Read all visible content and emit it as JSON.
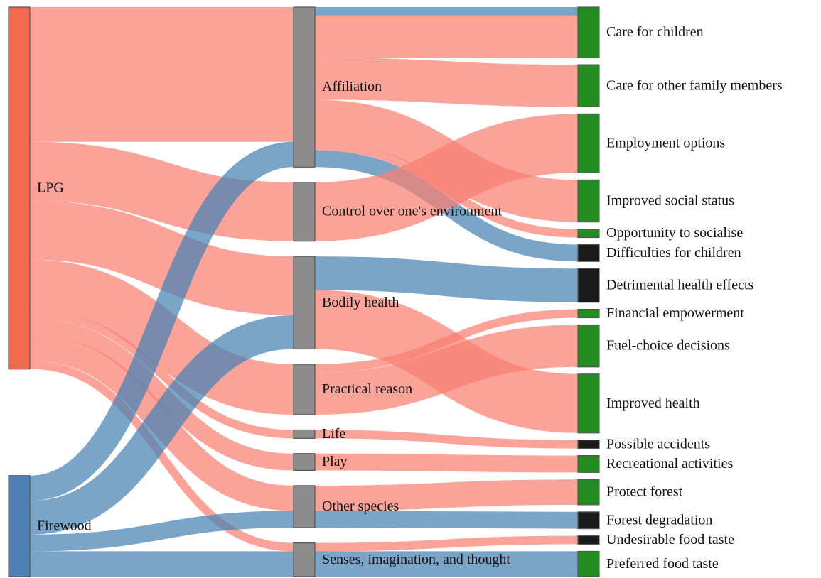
{
  "chart_data": {
    "type": "sankey",
    "nodes": [
      {
        "name": "LPG",
        "color": "#f4694f"
      },
      {
        "name": "Firewood",
        "color": "#4f81b5"
      },
      {
        "name": "Affiliation",
        "color": "#8c8c8c"
      },
      {
        "name": "Control over one's environment",
        "color": "#8c8c8c"
      },
      {
        "name": "Bodily health",
        "color": "#8c8c8c"
      },
      {
        "name": "Practical reason",
        "color": "#8c8c8c"
      },
      {
        "name": "Life",
        "color": "#8c8c8c"
      },
      {
        "name": "Play",
        "color": "#8c8c8c"
      },
      {
        "name": "Other species",
        "color": "#8c8c8c"
      },
      {
        "name": "Senses, imagination, and thought",
        "color": "#8c8c8c"
      },
      {
        "name": "Care for children",
        "color": "#228b22"
      },
      {
        "name": "Care for other family members",
        "color": "#228b22"
      },
      {
        "name": "Employment options",
        "color": "#228b22"
      },
      {
        "name": "Improved social status",
        "color": "#228b22"
      },
      {
        "name": "Opportunity to socialise",
        "color": "#228b22"
      },
      {
        "name": "Difficulties for children",
        "color": "#1a1a1a"
      },
      {
        "name": "Detrimental health effects",
        "color": "#1a1a1a"
      },
      {
        "name": "Financial empowerment",
        "color": "#228b22"
      },
      {
        "name": "Fuel-choice decisions",
        "color": "#228b22"
      },
      {
        "name": "Improved health",
        "color": "#228b22"
      },
      {
        "name": "Possible accidents",
        "color": "#1a1a1a"
      },
      {
        "name": "Recreational activities",
        "color": "#228b22"
      },
      {
        "name": "Protect forest",
        "color": "#228b22"
      },
      {
        "name": "Forest degradation",
        "color": "#1a1a1a"
      },
      {
        "name": "Undesirable food taste",
        "color": "#1a1a1a"
      },
      {
        "name": "Preferred food taste",
        "color": "#228b22"
      }
    ],
    "links": [
      {
        "source": 0,
        "target": 2,
        "value": 16,
        "color": "#fa8072"
      },
      {
        "source": 0,
        "target": 3,
        "value": 7,
        "color": "#fa8072"
      },
      {
        "source": 0,
        "target": 4,
        "value": 7,
        "color": "#fa8072"
      },
      {
        "source": 0,
        "target": 5,
        "value": 6,
        "color": "#fa8072"
      },
      {
        "source": 0,
        "target": 6,
        "value": 1,
        "color": "#fa8072"
      },
      {
        "source": 0,
        "target": 7,
        "value": 2,
        "color": "#fa8072"
      },
      {
        "source": 0,
        "target": 8,
        "value": 3,
        "color": "#fa8072"
      },
      {
        "source": 0,
        "target": 9,
        "value": 1,
        "color": "#fa8072"
      },
      {
        "source": 1,
        "target": 2,
        "value": 3,
        "color": "#4682b4"
      },
      {
        "source": 1,
        "target": 4,
        "value": 4,
        "color": "#4682b4"
      },
      {
        "source": 1,
        "target": 8,
        "value": 2,
        "color": "#4682b4"
      },
      {
        "source": 1,
        "target": 9,
        "value": 3,
        "color": "#4682b4"
      },
      {
        "source": 2,
        "target": 10,
        "value": 1,
        "color": "#4682b4"
      },
      {
        "source": 2,
        "target": 10,
        "value": 5,
        "color": "#fa8072"
      },
      {
        "source": 2,
        "target": 11,
        "value": 5,
        "color": "#fa8072"
      },
      {
        "source": 2,
        "target": 13,
        "value": 5,
        "color": "#fa8072"
      },
      {
        "source": 2,
        "target": 14,
        "value": 1,
        "color": "#fa8072"
      },
      {
        "source": 2,
        "target": 15,
        "value": 2,
        "color": "#4682b4"
      },
      {
        "source": 3,
        "target": 12,
        "value": 7,
        "color": "#fa8072"
      },
      {
        "source": 4,
        "target": 16,
        "value": 4,
        "color": "#4682b4"
      },
      {
        "source": 4,
        "target": 19,
        "value": 7,
        "color": "#fa8072"
      },
      {
        "source": 5,
        "target": 17,
        "value": 1,
        "color": "#fa8072"
      },
      {
        "source": 5,
        "target": 18,
        "value": 5,
        "color": "#fa8072"
      },
      {
        "source": 6,
        "target": 20,
        "value": 1,
        "color": "#fa8072"
      },
      {
        "source": 7,
        "target": 21,
        "value": 2,
        "color": "#fa8072"
      },
      {
        "source": 8,
        "target": 22,
        "value": 3,
        "color": "#fa8072"
      },
      {
        "source": 8,
        "target": 23,
        "value": 2,
        "color": "#4682b4"
      },
      {
        "source": 9,
        "target": 24,
        "value": 1,
        "color": "#fa8072"
      },
      {
        "source": 9,
        "target": 25,
        "value": 3,
        "color": "#4682b4"
      }
    ]
  }
}
